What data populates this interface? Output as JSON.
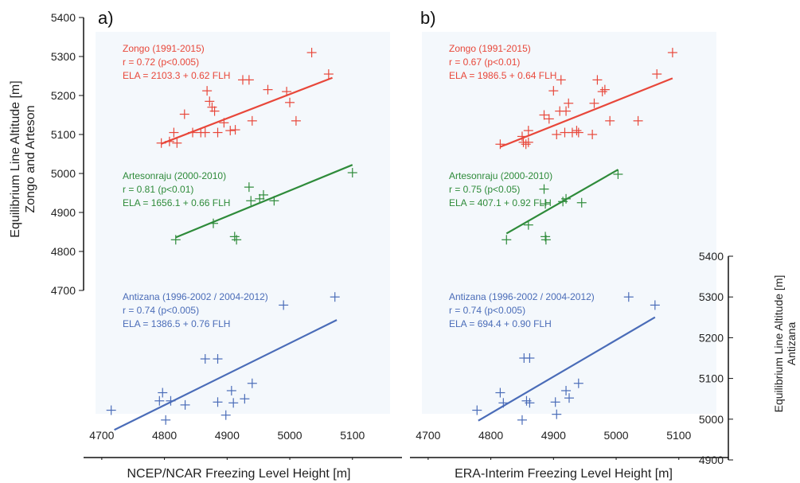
{
  "colors": {
    "zongo": "#e8473a",
    "artesonraju": "#2e8b3a",
    "antizana": "#4a6cb8",
    "panel_bg": "#f4f8fc",
    "axis": "#111111"
  },
  "chart_data": [
    {
      "type": "scatter",
      "panel_label": "a)",
      "xlabel": "NCEP/NCAR Freezing Level Height [m]",
      "ylabel_left": [
        "Equilibrium Line Altitude [m]",
        "Zongo and Arteson"
      ],
      "xlim": [
        4690,
        5160
      ],
      "x_ticks": [
        4700,
        4800,
        4900,
        5000,
        5100
      ],
      "ylim_left": [
        4700,
        5400
      ],
      "y_ticks_left": [
        4700,
        4800,
        4900,
        5000,
        5100,
        5200,
        5300,
        5400
      ],
      "grid": false,
      "series": [
        {
          "name": "Zongo (1991-2015)",
          "key": "zongo",
          "axis": "left",
          "annotation": [
            "Zongo (1991-2015)",
            "r = 0.72 (p<0.005)",
            "ELA = 2103.3 + 0.62 FLH"
          ],
          "fit": {
            "intercept": 2103.3,
            "slope": 0.62,
            "x_range": [
              4795,
              5068
            ]
          },
          "points": [
            [
              4795,
              5078
            ],
            [
              4808,
              5082
            ],
            [
              4820,
              5078
            ],
            [
              4815,
              5105
            ],
            [
              4832,
              5152
            ],
            [
              4845,
              5105
            ],
            [
              4858,
              5105
            ],
            [
              4865,
              5105
            ],
            [
              4868,
              5212
            ],
            [
              4872,
              5185
            ],
            [
              4876,
              5170
            ],
            [
              4880,
              5160
            ],
            [
              4885,
              5105
            ],
            [
              4895,
              5130
            ],
            [
              4905,
              5110
            ],
            [
              4913,
              5112
            ],
            [
              4925,
              5240
            ],
            [
              4935,
              5240
            ],
            [
              4940,
              5135
            ],
            [
              4965,
              5215
            ],
            [
              4995,
              5210
            ],
            [
              5000,
              5182
            ],
            [
              5010,
              5135
            ],
            [
              5035,
              5310
            ],
            [
              5062,
              5255
            ]
          ]
        },
        {
          "name": "Artesonraju (2000-2010)",
          "key": "artesonraju",
          "axis": "left",
          "annotation": [
            "Artesonraju (2000-2010)",
            "r = 0.81 (p<0.01)",
            "ELA = 1656.1 + 0.66 FLH"
          ],
          "fit": {
            "intercept": 1656.1,
            "slope": 0.66,
            "x_range": [
              4818,
              5100
            ]
          },
          "points": [
            [
              4818,
              4830
            ],
            [
              4878,
              4872
            ],
            [
              4912,
              4838
            ],
            [
              4915,
              4830
            ],
            [
              4935,
              4965
            ],
            [
              4938,
              4930
            ],
            [
              4952,
              4935
            ],
            [
              4958,
              4945
            ],
            [
              4975,
              4930
            ],
            [
              5100,
              5002
            ]
          ]
        }
      ]
    },
    {
      "type": "scatter",
      "panel_label": "b)",
      "xlabel": "ERA-Interim Freezing Level Height [m]",
      "ylabel_right": [
        "Equilibrium Line Altitude [m]",
        "Antizana"
      ],
      "xlim": [
        4690,
        5160
      ],
      "x_ticks": [
        4700,
        4800,
        4900,
        5000,
        5100
      ],
      "ylim_right": [
        4900,
        5400
      ],
      "y_ticks_right": [
        4900,
        5000,
        5100,
        5200,
        5300,
        5400
      ],
      "grid": false,
      "series": [
        {
          "name": "Zongo (1991-2015)",
          "key": "zongo",
          "axis": "left",
          "annotation": [
            "Zongo (1991-2015)",
            "r = 0.67 (p<0.01)",
            "ELA = 1986.5 + 0.64 FLH"
          ],
          "fit": {
            "intercept": 1986.5,
            "slope": 0.64,
            "x_range": [
              4815,
              5090
            ]
          },
          "points": [
            [
              4815,
              5075
            ],
            [
              4850,
              5095
            ],
            [
              4852,
              5080
            ],
            [
              4856,
              5075
            ],
            [
              4860,
              5080
            ],
            [
              4860,
              5110
            ],
            [
              4885,
              5150
            ],
            [
              4893,
              5140
            ],
            [
              4900,
              5212
            ],
            [
              4905,
              5100
            ],
            [
              4910,
              5160
            ],
            [
              4912,
              5240
            ],
            [
              4918,
              5105
            ],
            [
              4920,
              5160
            ],
            [
              4924,
              5180
            ],
            [
              4930,
              5105
            ],
            [
              4937,
              5110
            ],
            [
              4940,
              5105
            ],
            [
              4962,
              5100
            ],
            [
              4965,
              5180
            ],
            [
              4970,
              5240
            ],
            [
              4978,
              5210
            ],
            [
              4982,
              5215
            ],
            [
              4990,
              5135
            ],
            [
              5035,
              5135
            ],
            [
              5065,
              5255
            ],
            [
              5090,
              5310
            ]
          ]
        },
        {
          "name": "Artesonraju (2000-2010)",
          "key": "artesonraju",
          "axis": "left",
          "annotation": [
            "Artesonraju (2000-2010)",
            "r = 0.75 (p<0.05)",
            "ELA = 407.1 + 0.92 FLH"
          ],
          "fit": {
            "intercept": 407.1,
            "slope": 0.92,
            "x_range": [
              4825,
              5003
            ]
          },
          "points": [
            [
              4825,
              4830
            ],
            [
              4860,
              4868
            ],
            [
              4885,
              4960
            ],
            [
              4887,
              4922
            ],
            [
              4887,
              4838
            ],
            [
              4888,
              4830
            ],
            [
              4915,
              4928
            ],
            [
              4920,
              4935
            ],
            [
              4945,
              4925
            ],
            [
              5003,
              4998
            ]
          ]
        }
      ]
    },
    {
      "type": "scatter",
      "panel_label": "",
      "series": [
        {
          "name": "Antizana (1996-2002 / 2004-2012)",
          "key": "antizana",
          "panel": 0,
          "axis": "right",
          "annotation": [
            "Antizana (1996-2002 / 2004-2012)",
            "r = 0.74 (p<0.005)",
            "ELA = 1386.5 + 0.76 FLH"
          ],
          "fit": {
            "intercept": 1386.5,
            "slope": 0.76,
            "x_range": [
              4720,
              5075
            ]
          },
          "points": [
            [
              4715,
              5022
            ],
            [
              4792,
              5045
            ],
            [
              4797,
              5065
            ],
            [
              4802,
              4998
            ],
            [
              4810,
              5045
            ],
            [
              4833,
              5035
            ],
            [
              4865,
              5148
            ],
            [
              4885,
              5148
            ],
            [
              4885,
              5042
            ],
            [
              4898,
              5010
            ],
            [
              4907,
              5070
            ],
            [
              4910,
              5040
            ],
            [
              4928,
              5050
            ],
            [
              4940,
              5088
            ],
            [
              4990,
              5280
            ],
            [
              5072,
              5300
            ]
          ]
        },
        {
          "name": "Antizana (1996-2002 / 2004-2012)",
          "key": "antizana",
          "panel": 1,
          "axis": "right",
          "annotation": [
            "Antizana (1996-2002 / 2004-2012)",
            "r = 0.74 (p<0.005)",
            "ELA = 694.4 + 0.90 FLH"
          ],
          "fit": {
            "intercept": 694.4,
            "slope": 0.9,
            "x_range": [
              4780,
              5062
            ]
          },
          "points": [
            [
              4778,
              5022
            ],
            [
              4815,
              5065
            ],
            [
              4820,
              5040
            ],
            [
              4850,
              4998
            ],
            [
              4853,
              5150
            ],
            [
              4857,
              5045
            ],
            [
              4862,
              5040
            ],
            [
              4862,
              5150
            ],
            [
              4903,
              5042
            ],
            [
              4905,
              5012
            ],
            [
              4920,
              5070
            ],
            [
              4925,
              5052
            ],
            [
              4940,
              5088
            ],
            [
              5020,
              5300
            ],
            [
              5062,
              5280
            ]
          ]
        }
      ]
    }
  ]
}
